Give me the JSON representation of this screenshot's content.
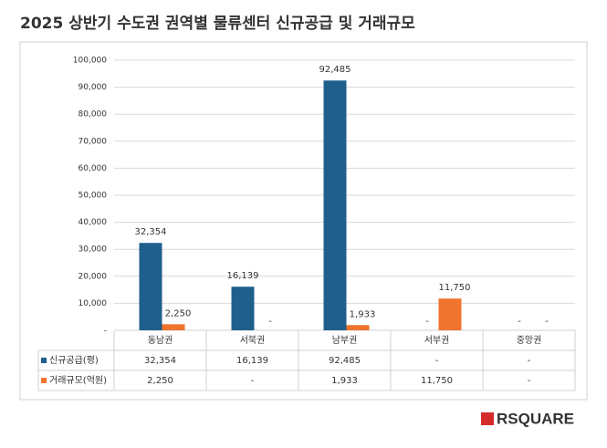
{
  "chart_data": {
    "type": "bar",
    "title": "2025 상반기 수도권 권역별 물류센터 신규공급 및 거래규모",
    "categories": [
      "동남권",
      "서북권",
      "남부권",
      "서부권",
      "중앙권"
    ],
    "series": [
      {
        "name": "신규공급(평)",
        "color": "#1f5f8b",
        "values": [
          32354,
          16139,
          92485,
          null,
          null
        ],
        "value_labels": [
          "32,354",
          "16,139",
          "92,485",
          "-",
          "-"
        ]
      },
      {
        "name": "거래규모(억원)",
        "color": "#f0732e",
        "values": [
          2250,
          null,
          1933,
          11750,
          null
        ],
        "value_labels": [
          "2,250",
          "-",
          "1,933",
          "11,750",
          "-"
        ]
      }
    ],
    "ylim": [
      0,
      100000
    ],
    "yticks": [
      {
        "value": 0,
        "label": "-"
      },
      {
        "value": 10000,
        "label": "10,000"
      },
      {
        "value": 20000,
        "label": "20,000"
      },
      {
        "value": 30000,
        "label": "30,000"
      },
      {
        "value": 40000,
        "label": "40,000"
      },
      {
        "value": 50000,
        "label": "50,000"
      },
      {
        "value": 60000,
        "label": "60,000"
      },
      {
        "value": 70000,
        "label": "70,000"
      },
      {
        "value": 80000,
        "label": "80,000"
      },
      {
        "value": 90000,
        "label": "90,000"
      },
      {
        "value": 100000,
        "label": "100,000"
      }
    ],
    "grid": true,
    "data_table": true
  },
  "logo": "RSQUARE"
}
